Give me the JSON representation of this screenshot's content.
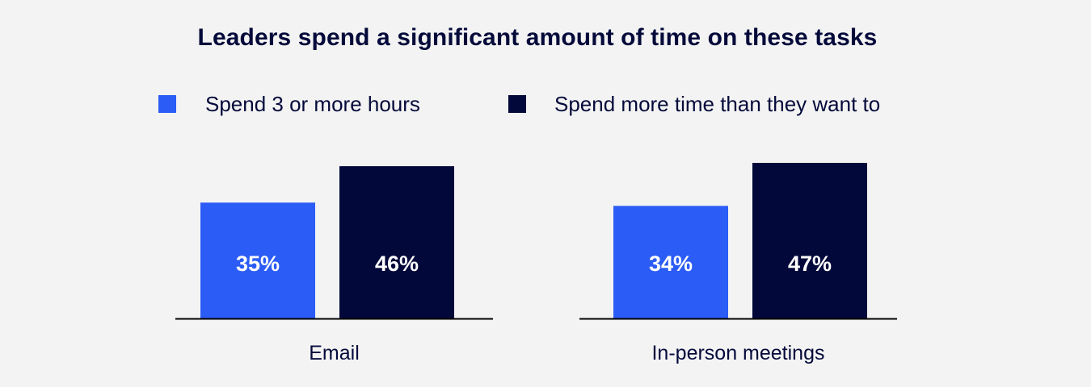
{
  "chart_data": {
    "type": "bar",
    "title": "Leaders spend a significant amount of time on these tasks",
    "categories": [
      "Email",
      "In-person meetings"
    ],
    "series": [
      {
        "name": "Spend 3 or more hours",
        "values": [
          35,
          34
        ],
        "labels": [
          "35%",
          "34%"
        ],
        "color": "#2b5cf5"
      },
      {
        "name": "Spend more time than they want to",
        "values": [
          46,
          47
        ],
        "labels": [
          "46%",
          "47%"
        ],
        "color": "#03083a"
      }
    ],
    "value_unit": "%",
    "ylim": [
      0,
      47
    ],
    "y_axis_visible": false,
    "grid": false,
    "legend_position": "top",
    "label_color": "#ffffff",
    "baseline_color": "#000000"
  }
}
